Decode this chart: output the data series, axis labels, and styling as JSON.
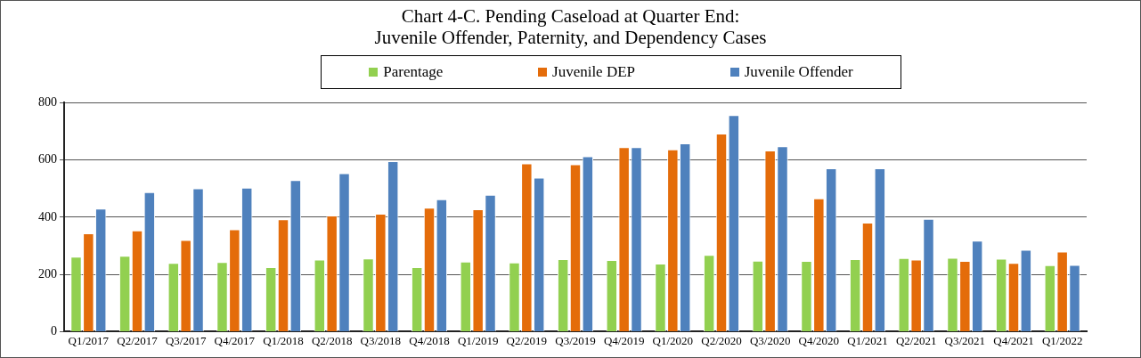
{
  "chart_data": {
    "type": "bar",
    "title": "Chart 4-C. Pending Caseload at Quarter End:\nJuvenile Offender, Paternity, and Dependency Cases",
    "categories": [
      "Q1/2017",
      "Q2/2017",
      "Q3/2017",
      "Q4/2017",
      "Q1/2018",
      "Q2/2018",
      "Q3/2018",
      "Q4/2018",
      "Q1/2019",
      "Q2/2019",
      "Q3/2019",
      "Q4/2019",
      "Q1/2020",
      "Q2/2020",
      "Q3/2020",
      "Q4/2020",
      "Q1/2021",
      "Q2/2021",
      "Q3/2021",
      "Q4/2021",
      "Q1/2022"
    ],
    "series": [
      {
        "name": "Parentage",
        "color": "#92d050",
        "values": [
          262,
          265,
          240,
          243,
          225,
          252,
          256,
          225,
          245,
          242,
          253,
          250,
          238,
          268,
          248,
          247,
          253,
          257,
          258,
          255,
          232
        ]
      },
      {
        "name": "Juvenile DEP",
        "color": "#e46c0a",
        "values": [
          344,
          354,
          320,
          358,
          393,
          406,
          412,
          433,
          428,
          588,
          585,
          645,
          637,
          692,
          633,
          466,
          381,
          252,
          247,
          240,
          280
        ]
      },
      {
        "name": "Juvenile Offender",
        "color": "#4f81bd",
        "values": [
          430,
          488,
          501,
          503,
          530,
          554,
          596,
          463,
          478,
          538,
          613,
          645,
          658,
          757,
          648,
          571,
          571,
          394,
          318,
          286,
          233
        ]
      }
    ],
    "ylim": [
      0,
      800
    ],
    "yticks": [
      0,
      200,
      400,
      600,
      800
    ],
    "grid": "y",
    "legend": "top"
  }
}
